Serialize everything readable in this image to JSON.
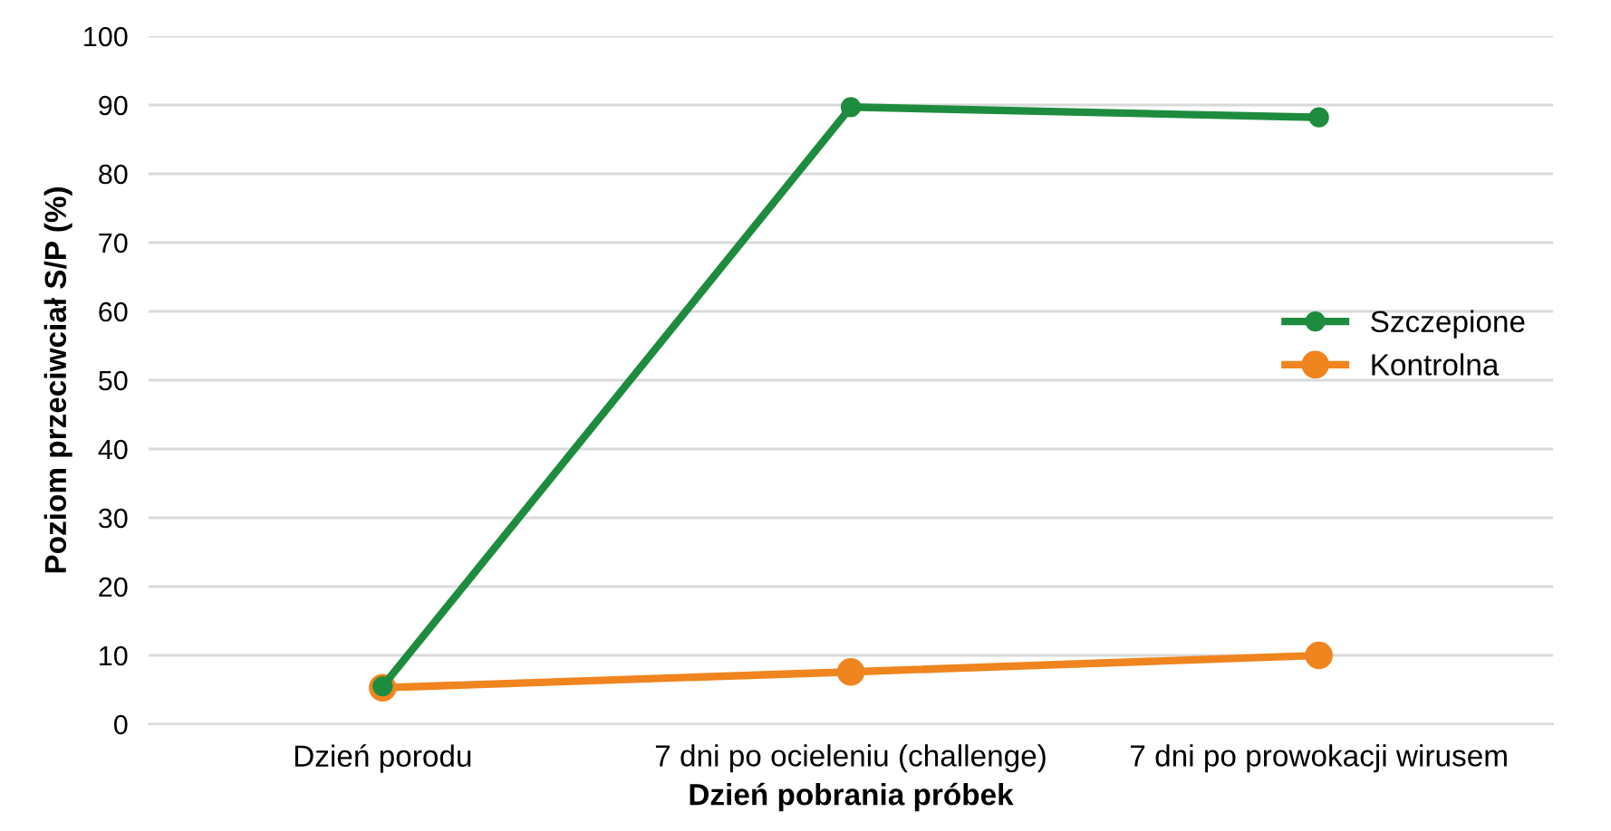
{
  "chart_data": {
    "type": "line",
    "xlabel": "Dzień pobrania próbek",
    "ylabel": "Poziom przeciwciał S/P (%)",
    "categories": [
      "Dzień porodu",
      "7 dni po ocieleniu (challenge)",
      "7 dni po prowokacji wirusem"
    ],
    "series": [
      {
        "name": "Szczepione",
        "color": "#1e8c3e",
        "values": [
          5.5,
          89.7,
          88.2
        ]
      },
      {
        "name": "Kontrolna",
        "color": "#f0841e",
        "values": [
          5.3,
          7.6,
          10.0
        ]
      }
    ],
    "ylim": [
      0,
      100
    ],
    "yticks": [
      0,
      10,
      20,
      30,
      40,
      50,
      60,
      70,
      80,
      90,
      100
    ],
    "grid": "y",
    "legend": "right",
    "marker": "circle",
    "line_style": "solid"
  }
}
